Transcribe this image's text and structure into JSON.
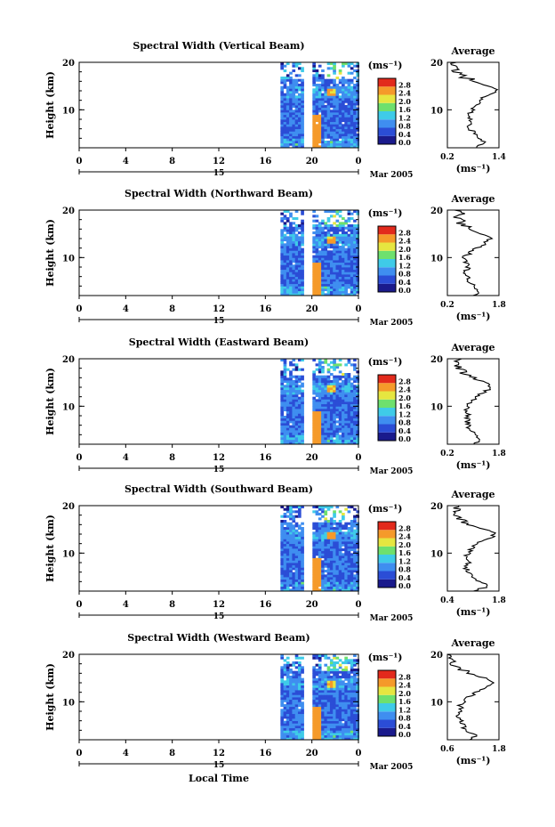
{
  "figure": {
    "xlabel": "Local Time",
    "date_label": "Mar 2005",
    "day_label": "15",
    "unit_label": "(ms⁻¹)",
    "avg_title": "Average",
    "avg_xlabel": "(ms⁻¹)",
    "ylabel": "Height (km)",
    "colorbar_ticks": [
      "0.0",
      "0.4",
      "0.8",
      "1.2",
      "1.6",
      "2.0",
      "2.4",
      "2.8"
    ]
  },
  "chart_data": [
    {
      "type": "heatmap",
      "title": "Spectral Width (Vertical Beam)",
      "ylabel": "Height (km)",
      "xlabel": "Local Time",
      "x_ticks": [
        "0",
        "4",
        "8",
        "12",
        "16",
        "20",
        "0"
      ],
      "xlim": [
        0,
        24
      ],
      "ylim": [
        2,
        20
      ],
      "y_ticks": [
        "20",
        "10"
      ],
      "colorbar": {
        "min": 0.0,
        "max": 2.8
      },
      "avg": {
        "title": "Average",
        "x_ticks": [
          "0.2",
          "1.4"
        ],
        "xlim": [
          0.2,
          1.4
        ],
        "xlabel": "(ms⁻¹)",
        "heights": [
          2,
          3,
          4,
          5,
          6,
          7,
          8,
          9,
          10,
          11,
          12,
          13,
          14,
          15,
          16,
          17,
          18,
          19,
          20
        ],
        "values": [
          0.9,
          1.05,
          0.95,
          0.8,
          0.75,
          0.7,
          0.75,
          0.72,
          0.8,
          0.85,
          0.95,
          1.15,
          1.35,
          1.2,
          0.85,
          0.55,
          0.35,
          0.3,
          0.4
        ]
      }
    },
    {
      "type": "heatmap",
      "title": "Spectral Width (Northward Beam)",
      "ylabel": "Height (km)",
      "xlabel": "Local Time",
      "x_ticks": [
        "0",
        "4",
        "8",
        "12",
        "16",
        "20",
        "0"
      ],
      "xlim": [
        0,
        24
      ],
      "ylim": [
        2,
        20
      ],
      "y_ticks": [
        "20",
        "10"
      ],
      "colorbar": {
        "min": 0.0,
        "max": 2.8
      },
      "avg": {
        "title": "Average",
        "x_ticks": [
          "0.2",
          "1.8"
        ],
        "xlim": [
          0.2,
          1.8
        ],
        "xlabel": "(ms⁻¹)",
        "heights": [
          2,
          3,
          4,
          5,
          6,
          7,
          8,
          9,
          10,
          11,
          12,
          13,
          14,
          15,
          16,
          17,
          18,
          19,
          20
        ],
        "values": [
          1.0,
          1.2,
          1.0,
          0.85,
          0.8,
          0.75,
          0.85,
          0.75,
          0.7,
          0.9,
          1.1,
          1.4,
          1.5,
          1.3,
          0.95,
          0.7,
          0.55,
          0.6,
          0.5
        ]
      }
    },
    {
      "type": "heatmap",
      "title": "Spectral Width (Eastward Beam)",
      "ylabel": "Height (km)",
      "xlabel": "Local Time",
      "x_ticks": [
        "0",
        "4",
        "8",
        "12",
        "16",
        "20",
        "0"
      ],
      "xlim": [
        0,
        24
      ],
      "ylim": [
        2,
        20
      ],
      "y_ticks": [
        "20",
        "10"
      ],
      "colorbar": {
        "min": 0.0,
        "max": 2.8
      },
      "avg": {
        "title": "Average",
        "x_ticks": [
          "0.2",
          "1.8"
        ],
        "xlim": [
          0.2,
          1.8
        ],
        "xlabel": "(ms⁻¹)",
        "heights": [
          2,
          3,
          4,
          5,
          6,
          7,
          8,
          9,
          10,
          11,
          12,
          13,
          14,
          15,
          16,
          17,
          18,
          19,
          20
        ],
        "values": [
          1.0,
          1.25,
          1.05,
          0.9,
          0.85,
          0.8,
          0.85,
          0.8,
          0.8,
          0.95,
          1.1,
          1.35,
          1.6,
          1.35,
          1.0,
          0.7,
          0.5,
          0.6,
          0.55
        ]
      }
    },
    {
      "type": "heatmap",
      "title": "Spectral Width (Southward Beam)",
      "ylabel": "Height (km)",
      "xlabel": "Local Time",
      "x_ticks": [
        "0",
        "4",
        "8",
        "12",
        "16",
        "20",
        "0"
      ],
      "xlim": [
        0,
        24
      ],
      "ylim": [
        2,
        20
      ],
      "y_ticks": [
        "20",
        "10"
      ],
      "colorbar": {
        "min": 0.0,
        "max": 2.8
      },
      "avg": {
        "title": "Average",
        "x_ticks": [
          "0.4",
          "1.8"
        ],
        "xlim": [
          0.4,
          1.8
        ],
        "xlabel": "(ms⁻¹)",
        "heights": [
          2,
          3,
          4,
          5,
          6,
          7,
          8,
          9,
          10,
          11,
          12,
          13,
          14,
          15,
          16,
          17,
          18,
          19,
          20
        ],
        "values": [
          1.1,
          1.5,
          1.3,
          1.05,
          0.95,
          0.9,
          1.0,
          0.9,
          0.95,
          1.05,
          1.2,
          1.5,
          1.7,
          1.4,
          1.0,
          0.8,
          0.6,
          0.65,
          0.55
        ]
      }
    },
    {
      "type": "heatmap",
      "title": "Spectral Width (Westward Beam)",
      "ylabel": "Height (km)",
      "xlabel": "Local Time",
      "x_ticks": [
        "0",
        "4",
        "8",
        "12",
        "16",
        "20",
        "0"
      ],
      "xlim": [
        0,
        24
      ],
      "ylim": [
        2,
        20
      ],
      "y_ticks": [
        "20",
        "10"
      ],
      "colorbar": {
        "min": 0.0,
        "max": 2.8
      },
      "avg": {
        "title": "Average",
        "x_ticks": [
          "0.6",
          "1.8"
        ],
        "xlim": [
          0.6,
          1.8
        ],
        "xlabel": "(ms⁻¹)",
        "heights": [
          2,
          3,
          4,
          5,
          6,
          7,
          8,
          9,
          10,
          11,
          12,
          13,
          14,
          15,
          16,
          17,
          18,
          19,
          20
        ],
        "values": [
          1.1,
          1.25,
          1.05,
          0.95,
          0.9,
          0.85,
          0.95,
          0.9,
          0.95,
          1.1,
          1.3,
          1.5,
          1.7,
          1.45,
          1.1,
          0.9,
          0.75,
          0.8,
          0.7
        ]
      }
    }
  ]
}
